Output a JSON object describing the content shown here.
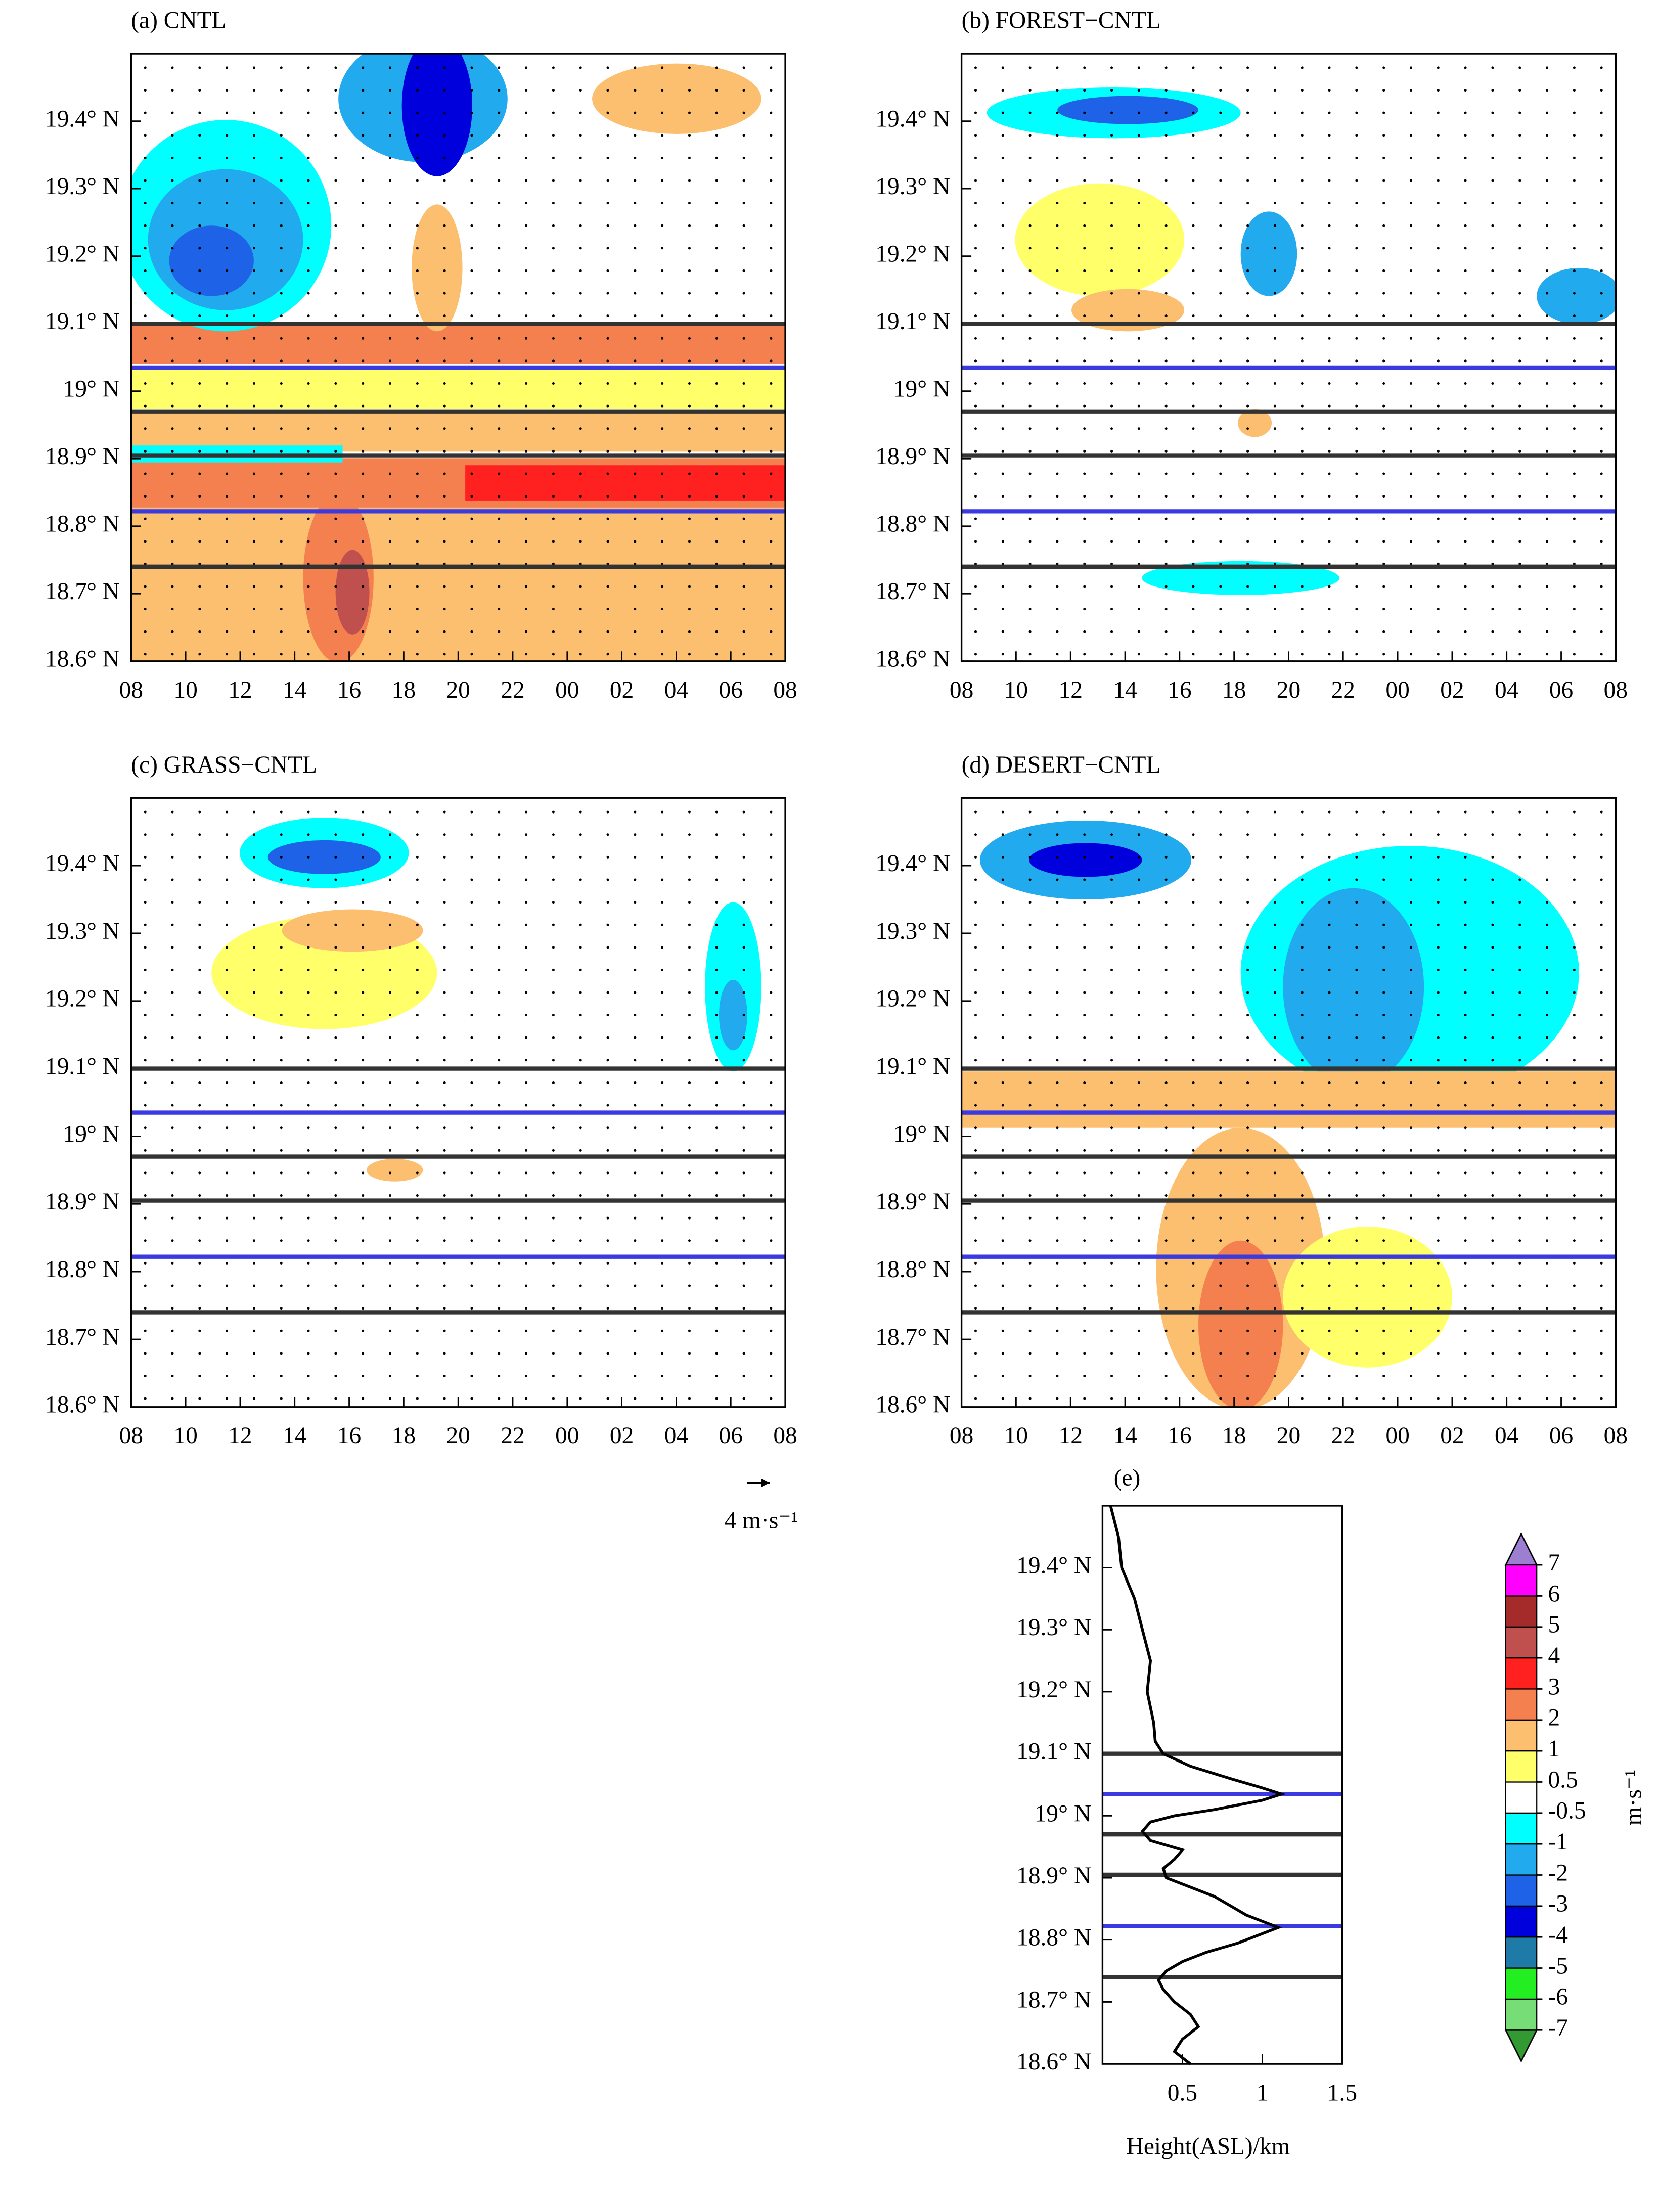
{
  "chart_data": [
    {
      "type": "contour",
      "title": "(a) CNTL",
      "xlim": [
        0,
        24
      ],
      "ylim": [
        18.6,
        19.5
      ],
      "xticks": [
        {
          "value": 0,
          "label": "08"
        },
        {
          "value": 2,
          "label": "10"
        },
        {
          "value": 4,
          "label": "12"
        },
        {
          "value": 6,
          "label": "14"
        },
        {
          "value": 8,
          "label": "16"
        },
        {
          "value": 10,
          "label": "18"
        },
        {
          "value": 12,
          "label": "20"
        },
        {
          "value": 14,
          "label": "22"
        },
        {
          "value": 16,
          "label": "00"
        },
        {
          "value": 18,
          "label": "02"
        },
        {
          "value": 20,
          "label": "04"
        },
        {
          "value": 22,
          "label": "06"
        },
        {
          "value": 24,
          "label": "08"
        }
      ],
      "yticks": [
        {
          "value": 18.6,
          "label": "18.6° N"
        },
        {
          "value": 18.7,
          "label": "18.7° N"
        },
        {
          "value": 18.8,
          "label": "18.8° N"
        },
        {
          "value": 18.9,
          "label": "18.9° N"
        },
        {
          "value": 19.0,
          "label": "19° N"
        },
        {
          "value": 19.1,
          "label": "19.1° N"
        },
        {
          "value": 19.2,
          "label": "19.2° N"
        },
        {
          "value": 19.3,
          "label": "19.3° N"
        },
        {
          "value": 19.4,
          "label": "19.4° N"
        }
      ],
      "hlines": [
        {
          "value": 19.1,
          "color": "#333333"
        },
        {
          "value": 19.035,
          "color": "#3a3ae0"
        },
        {
          "value": 18.97,
          "color": "#333333"
        },
        {
          "value": 18.905,
          "color": "#333333"
        },
        {
          "value": 18.822,
          "color": "#3a3ae0"
        },
        {
          "value": 18.74,
          "color": "#333333"
        }
      ]
    },
    {
      "type": "contour",
      "title": "(b) FOREST−CNTL",
      "xlim": [
        0,
        24
      ],
      "ylim": [
        18.6,
        19.5
      ],
      "xticks": [
        {
          "value": 0,
          "label": "08"
        },
        {
          "value": 2,
          "label": "10"
        },
        {
          "value": 4,
          "label": "12"
        },
        {
          "value": 6,
          "label": "14"
        },
        {
          "value": 8,
          "label": "16"
        },
        {
          "value": 10,
          "label": "18"
        },
        {
          "value": 12,
          "label": "20"
        },
        {
          "value": 14,
          "label": "22"
        },
        {
          "value": 16,
          "label": "00"
        },
        {
          "value": 18,
          "label": "02"
        },
        {
          "value": 20,
          "label": "04"
        },
        {
          "value": 22,
          "label": "06"
        },
        {
          "value": 24,
          "label": "08"
        }
      ],
      "yticks": [
        {
          "value": 18.6,
          "label": "18.6° N"
        },
        {
          "value": 18.7,
          "label": "18.7° N"
        },
        {
          "value": 18.8,
          "label": "18.8° N"
        },
        {
          "value": 18.9,
          "label": "18.9° N"
        },
        {
          "value": 19.0,
          "label": "19° N"
        },
        {
          "value": 19.1,
          "label": "19.1° N"
        },
        {
          "value": 19.2,
          "label": "19.2° N"
        },
        {
          "value": 19.3,
          "label": "19.3° N"
        },
        {
          "value": 19.4,
          "label": "19.4° N"
        }
      ],
      "hlines": [
        {
          "value": 19.1,
          "color": "#333333"
        },
        {
          "value": 19.035,
          "color": "#3a3ae0"
        },
        {
          "value": 18.97,
          "color": "#333333"
        },
        {
          "value": 18.905,
          "color": "#333333"
        },
        {
          "value": 18.822,
          "color": "#3a3ae0"
        },
        {
          "value": 18.74,
          "color": "#333333"
        }
      ]
    },
    {
      "type": "contour",
      "title": "(c) GRASS−CNTL",
      "xlim": [
        0,
        24
      ],
      "ylim": [
        18.6,
        19.5
      ],
      "xticks": [
        {
          "value": 0,
          "label": "08"
        },
        {
          "value": 2,
          "label": "10"
        },
        {
          "value": 4,
          "label": "12"
        },
        {
          "value": 6,
          "label": "14"
        },
        {
          "value": 8,
          "label": "16"
        },
        {
          "value": 10,
          "label": "18"
        },
        {
          "value": 12,
          "label": "20"
        },
        {
          "value": 14,
          "label": "22"
        },
        {
          "value": 16,
          "label": "00"
        },
        {
          "value": 18,
          "label": "02"
        },
        {
          "value": 20,
          "label": "04"
        },
        {
          "value": 22,
          "label": "06"
        },
        {
          "value": 24,
          "label": "08"
        }
      ],
      "yticks": [
        {
          "value": 18.6,
          "label": "18.6° N"
        },
        {
          "value": 18.7,
          "label": "18.7° N"
        },
        {
          "value": 18.8,
          "label": "18.8° N"
        },
        {
          "value": 18.9,
          "label": "18.9° N"
        },
        {
          "value": 19.0,
          "label": "19° N"
        },
        {
          "value": 19.1,
          "label": "19.1° N"
        },
        {
          "value": 19.2,
          "label": "19.2° N"
        },
        {
          "value": 19.3,
          "label": "19.3° N"
        },
        {
          "value": 19.4,
          "label": "19.4° N"
        }
      ],
      "hlines": [
        {
          "value": 19.1,
          "color": "#333333"
        },
        {
          "value": 19.035,
          "color": "#3a3ae0"
        },
        {
          "value": 18.97,
          "color": "#333333"
        },
        {
          "value": 18.905,
          "color": "#333333"
        },
        {
          "value": 18.822,
          "color": "#3a3ae0"
        },
        {
          "value": 18.74,
          "color": "#333333"
        }
      ],
      "vector_key": "4 m·s⁻¹"
    },
    {
      "type": "contour",
      "title": "(d) DESERT−CNTL",
      "xlim": [
        0,
        24
      ],
      "ylim": [
        18.6,
        19.5
      ],
      "xticks": [
        {
          "value": 0,
          "label": "08"
        },
        {
          "value": 2,
          "label": "10"
        },
        {
          "value": 4,
          "label": "12"
        },
        {
          "value": 6,
          "label": "14"
        },
        {
          "value": 8,
          "label": "16"
        },
        {
          "value": 10,
          "label": "18"
        },
        {
          "value": 12,
          "label": "20"
        },
        {
          "value": 14,
          "label": "22"
        },
        {
          "value": 16,
          "label": "00"
        },
        {
          "value": 18,
          "label": "02"
        },
        {
          "value": 20,
          "label": "04"
        },
        {
          "value": 22,
          "label": "06"
        },
        {
          "value": 24,
          "label": "08"
        }
      ],
      "yticks": [
        {
          "value": 18.6,
          "label": "18.6° N"
        },
        {
          "value": 18.7,
          "label": "18.7° N"
        },
        {
          "value": 18.8,
          "label": "18.8° N"
        },
        {
          "value": 18.9,
          "label": "18.9° N"
        },
        {
          "value": 19.0,
          "label": "19° N"
        },
        {
          "value": 19.1,
          "label": "19.1° N"
        },
        {
          "value": 19.2,
          "label": "19.2° N"
        },
        {
          "value": 19.3,
          "label": "19.3° N"
        },
        {
          "value": 19.4,
          "label": "19.4° N"
        }
      ],
      "hlines": [
        {
          "value": 19.1,
          "color": "#333333"
        },
        {
          "value": 19.035,
          "color": "#3a3ae0"
        },
        {
          "value": 18.97,
          "color": "#333333"
        },
        {
          "value": 18.905,
          "color": "#333333"
        },
        {
          "value": 18.822,
          "color": "#3a3ae0"
        },
        {
          "value": 18.74,
          "color": "#333333"
        }
      ]
    },
    {
      "type": "profile",
      "title": "(e)",
      "x_label": "Height(ASL)/km",
      "xlim": [
        0,
        1.5
      ],
      "ylim": [
        18.6,
        19.5
      ],
      "xticks": [
        0.5,
        1,
        1.5
      ],
      "yticks": [
        {
          "value": 18.6,
          "label": "18.6° N"
        },
        {
          "value": 18.7,
          "label": "18.7° N"
        },
        {
          "value": 18.8,
          "label": "18.8° N"
        },
        {
          "value": 18.9,
          "label": "18.9° N"
        },
        {
          "value": 19.0,
          "label": "19° N"
        },
        {
          "value": 19.1,
          "label": "19.1° N"
        },
        {
          "value": 19.2,
          "label": "19.2° N"
        },
        {
          "value": 19.3,
          "label": "19.3° N"
        },
        {
          "value": 19.4,
          "label": "19.4° N"
        }
      ],
      "hlines": [
        {
          "value": 19.1,
          "color": "#333333"
        },
        {
          "value": 19.035,
          "color": "#3a3ae0"
        },
        {
          "value": 18.97,
          "color": "#333333"
        },
        {
          "value": 18.905,
          "color": "#333333"
        },
        {
          "value": 18.822,
          "color": "#3a3ae0"
        },
        {
          "value": 18.74,
          "color": "#333333"
        }
      ],
      "y": [
        19.5,
        19.45,
        19.4,
        19.35,
        19.3,
        19.25,
        19.2,
        19.15,
        19.12,
        19.1,
        19.08,
        19.06,
        19.045,
        19.035,
        19.025,
        19.01,
        19.0,
        18.99,
        18.975,
        18.96,
        18.945,
        18.93,
        18.915,
        18.9,
        18.885,
        18.87,
        18.855,
        18.84,
        18.83,
        18.82,
        18.81,
        18.795,
        18.78,
        18.765,
        18.75,
        18.735,
        18.72,
        18.7,
        18.68,
        18.66,
        18.64,
        18.62,
        18.6
      ],
      "values": [
        0.05,
        0.1,
        0.12,
        0.2,
        0.25,
        0.3,
        0.28,
        0.32,
        0.33,
        0.38,
        0.55,
        0.8,
        1.0,
        1.12,
        1.0,
        0.7,
        0.45,
        0.3,
        0.25,
        0.3,
        0.5,
        0.45,
        0.38,
        0.4,
        0.55,
        0.7,
        0.8,
        0.9,
        1.0,
        1.1,
        1.0,
        0.85,
        0.65,
        0.5,
        0.4,
        0.35,
        0.38,
        0.45,
        0.55,
        0.6,
        0.5,
        0.45,
        0.55
      ],
      "color": "#000000"
    },
    {
      "type": "colorbar",
      "label": "m·s⁻¹",
      "levels": [
        -7,
        -6,
        -5,
        -4,
        -3,
        -2,
        -1,
        -0.5,
        0.5,
        1,
        2,
        3,
        4,
        5,
        6,
        7
      ],
      "colors": [
        "#339933",
        "#77dd77",
        "#22ee22",
        "#1e7ba8",
        "#0000dd",
        "#1e62e8",
        "#22aaee",
        "#00ffff",
        "#ffffff",
        "#ffff6a",
        "#fbbf6f",
        "#f5804f",
        "#ff2020",
        "#c0504d",
        "#a52a2a",
        "#ff00ff",
        "#9c7fd1"
      ]
    }
  ]
}
